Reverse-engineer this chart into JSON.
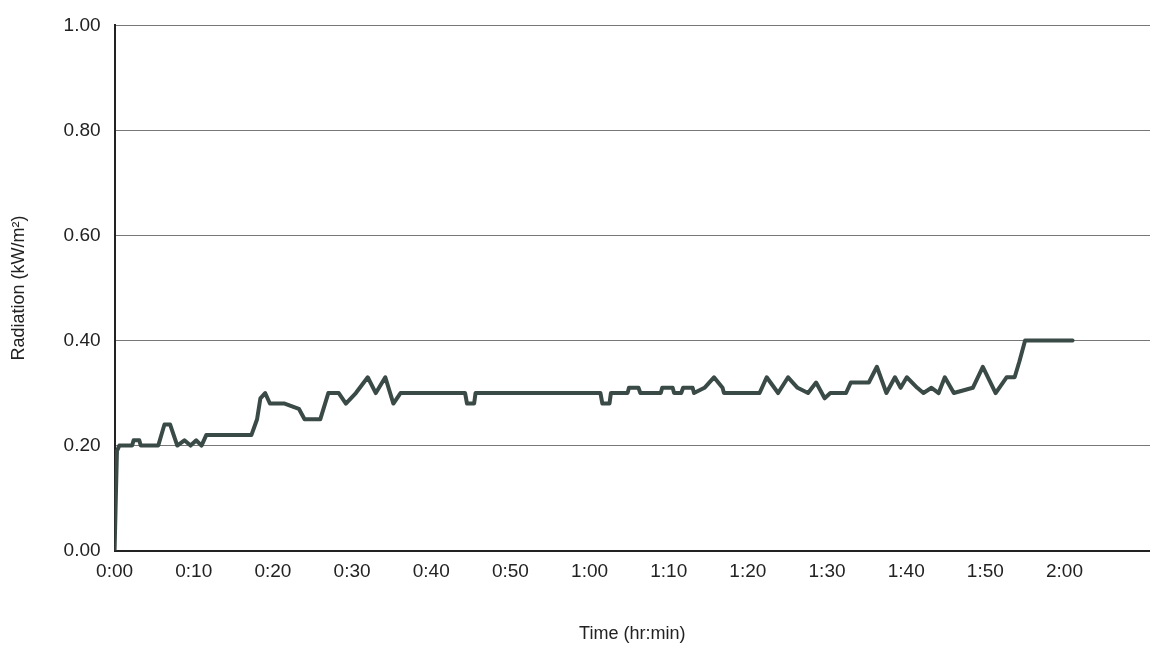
{
  "chart_data": {
    "type": "line",
    "xlabel": "Time (hr:min)",
    "ylabel": "Radiation (kW/m²)",
    "x": [
      0,
      0.005,
      0.01,
      0.037,
      0.04,
      0.052,
      0.055,
      0.092,
      0.105,
      0.117,
      0.132,
      0.147,
      0.16,
      0.172,
      0.183,
      0.193,
      0.288,
      0.3,
      0.307,
      0.317,
      0.327,
      0.358,
      0.388,
      0.4,
      0.433,
      0.45,
      0.472,
      0.487,
      0.508,
      0.533,
      0.55,
      0.57,
      0.587,
      0.602,
      0.738,
      0.742,
      0.757,
      0.76,
      1.023,
      1.027,
      1.042,
      1.045,
      1.08,
      1.083,
      1.103,
      1.107,
      1.15,
      1.153,
      1.175,
      1.178,
      1.193,
      1.197,
      1.217,
      1.22,
      1.242,
      1.262,
      1.28,
      1.283,
      1.358,
      1.373,
      1.397,
      1.418,
      1.438,
      1.46,
      1.477,
      1.495,
      1.507,
      1.54,
      1.55,
      1.588,
      1.605,
      1.625,
      1.643,
      1.655,
      1.668,
      1.69,
      1.703,
      1.72,
      1.735,
      1.748,
      1.767,
      1.807,
      1.828,
      1.855,
      1.878,
      1.895,
      1.905,
      1.917,
      2.017
    ],
    "series": [
      {
        "color": "#3a4a46",
        "values": [
          0,
          0.19,
          0.2,
          0.2,
          0.21,
          0.21,
          0.2,
          0.2,
          0.24,
          0.24,
          0.2,
          0.21,
          0.2,
          0.21,
          0.2,
          0.22,
          0.22,
          0.25,
          0.29,
          0.3,
          0.28,
          0.28,
          0.27,
          0.25,
          0.25,
          0.3,
          0.3,
          0.28,
          0.3,
          0.33,
          0.3,
          0.33,
          0.28,
          0.3,
          0.3,
          0.28,
          0.28,
          0.3,
          0.3,
          0.28,
          0.28,
          0.3,
          0.3,
          0.31,
          0.31,
          0.3,
          0.3,
          0.31,
          0.31,
          0.3,
          0.3,
          0.31,
          0.31,
          0.3,
          0.31,
          0.33,
          0.31,
          0.3,
          0.3,
          0.33,
          0.3,
          0.33,
          0.31,
          0.3,
          0.32,
          0.29,
          0.3,
          0.3,
          0.32,
          0.32,
          0.35,
          0.3,
          0.33,
          0.31,
          0.33,
          0.31,
          0.3,
          0.31,
          0.3,
          0.33,
          0.3,
          0.31,
          0.35,
          0.3,
          0.33,
          0.33,
          0.36,
          0.4,
          0.4
        ]
      }
    ],
    "xlim": [
      0,
      2.18
    ],
    "xticks": [
      {
        "value": 0,
        "label": "0:00"
      },
      {
        "value": 0.1667,
        "label": "0:10"
      },
      {
        "value": 0.3333,
        "label": "0:20"
      },
      {
        "value": 0.5,
        "label": "0:30"
      },
      {
        "value": 0.6667,
        "label": "0:40"
      },
      {
        "value": 0.8333,
        "label": "0:50"
      },
      {
        "value": 1,
        "label": "1:00"
      },
      {
        "value": 1.1667,
        "label": "1:10"
      },
      {
        "value": 1.3333,
        "label": "1:20"
      },
      {
        "value": 1.5,
        "label": "1:30"
      },
      {
        "value": 1.6667,
        "label": "1:40"
      },
      {
        "value": 1.8333,
        "label": "1:50"
      },
      {
        "value": 2,
        "label": "2:00"
      }
    ],
    "ylim": [
      0,
      1
    ],
    "yticks": [
      {
        "value": 0,
        "label": "0.00"
      },
      {
        "value": 0.2,
        "label": "0.20"
      },
      {
        "value": 0.4,
        "label": "0.40"
      },
      {
        "value": 0.6,
        "label": "0.60"
      },
      {
        "value": 0.8,
        "label": "0.80"
      },
      {
        "value": 1,
        "label": "1.00"
      }
    ],
    "grid": "y",
    "legend": false,
    "marker": "none",
    "line_style": "solid"
  }
}
